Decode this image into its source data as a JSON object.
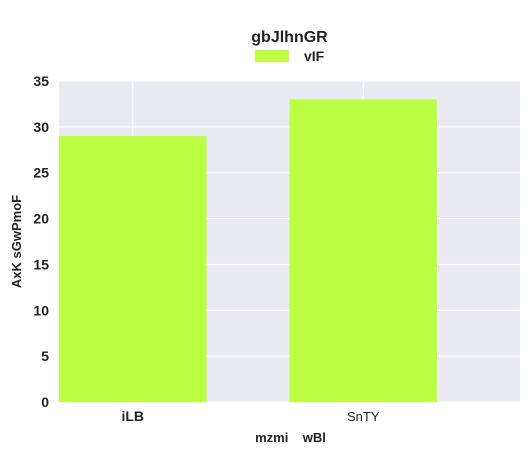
{
  "chart_data": {
    "type": "bar",
    "title": "gbJlhnGR",
    "xlabel": "mzmi    wBl",
    "ylabel": "AxK sGwPmoF",
    "categories": [
      "iLB",
      "SnTY"
    ],
    "series": [
      {
        "name": "vIF",
        "values": [
          29,
          33
        ],
        "color": "#bbff44"
      }
    ],
    "ylim": [
      0,
      35
    ],
    "yticks": [
      0,
      5,
      10,
      15,
      20,
      25,
      30,
      35
    ],
    "grid": true,
    "legend": "top-center",
    "plot_background": "#eaeaf2",
    "grid_color": "#ffffff"
  }
}
